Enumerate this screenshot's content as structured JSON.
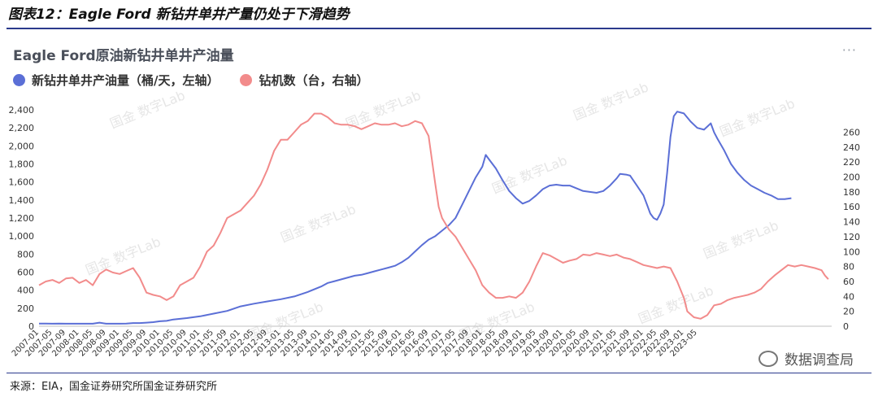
{
  "figure_title": "图表12：Eagle Ford 新钻井单井产量仍处于下滑趋势",
  "chart_title": "Eagle Ford原油新钻井单井产油量",
  "more_icon": "ellipsis-icon",
  "watermark": "国金 数字Lab",
  "source": "来源：EIA，国金证券研究所国金证券研究所",
  "wechat_label": "数据调查局",
  "chart_data": {
    "type": "line",
    "x_ticks": [
      "2007-01",
      "2007-05",
      "2007-09",
      "2008-01",
      "2008-05",
      "2008-09",
      "2009-01",
      "2009-05",
      "2009-09",
      "2010-01",
      "2010-05",
      "2010-09",
      "2011-01",
      "2011-05",
      "2011-09",
      "2012-01",
      "2012-05",
      "2012-09",
      "2013-01",
      "2013-05",
      "2013-09",
      "2014-01",
      "2014-05",
      "2014-09",
      "2015-01",
      "2015-05",
      "2015-09",
      "2016-01",
      "2016-05",
      "2016-09",
      "2017-01",
      "2017-05",
      "2017-09",
      "2018-01",
      "2018-05",
      "2018-09",
      "2019-01",
      "2019-05",
      "2019-09",
      "2020-01",
      "2020-05",
      "2020-09",
      "2021-01",
      "2021-05",
      "2021-09",
      "2022-01",
      "2022-05",
      "2022-09",
      "2023-01",
      "2023-05"
    ],
    "y_left": {
      "range": [
        0,
        2400
      ],
      "ticks": [
        "0",
        "200",
        "400",
        "600",
        "800",
        "1,000",
        "1,200",
        "1,400",
        "1,600",
        "1,800",
        "2,000",
        "2,200",
        "2,400"
      ]
    },
    "y_right": {
      "range": [
        0,
        290
      ],
      "ticks": [
        "0",
        "20",
        "40",
        "60",
        "80",
        "100",
        "120",
        "140",
        "160",
        "180",
        "200",
        "220",
        "240",
        "260"
      ]
    },
    "series": [
      {
        "name": "新钻井单井产油量（桶/天，左轴）",
        "axis": "left",
        "color": "#5b6fd6",
        "points": [
          [
            0,
            30
          ],
          [
            2,
            30
          ],
          [
            4,
            28
          ],
          [
            6,
            30
          ],
          [
            8,
            28
          ],
          [
            10,
            28
          ],
          [
            12,
            28
          ],
          [
            14,
            28
          ],
          [
            16,
            28
          ],
          [
            18,
            40
          ],
          [
            20,
            28
          ],
          [
            22,
            28
          ],
          [
            24,
            28
          ],
          [
            26,
            30
          ],
          [
            28,
            35
          ],
          [
            30,
            35
          ],
          [
            32,
            40
          ],
          [
            34,
            45
          ],
          [
            36,
            55
          ],
          [
            38,
            60
          ],
          [
            40,
            75
          ],
          [
            44,
            90
          ],
          [
            48,
            110
          ],
          [
            52,
            140
          ],
          [
            56,
            170
          ],
          [
            60,
            220
          ],
          [
            64,
            250
          ],
          [
            68,
            275
          ],
          [
            72,
            300
          ],
          [
            76,
            330
          ],
          [
            80,
            380
          ],
          [
            84,
            440
          ],
          [
            86,
            480
          ],
          [
            88,
            500
          ],
          [
            90,
            520
          ],
          [
            92,
            540
          ],
          [
            94,
            560
          ],
          [
            96,
            570
          ],
          [
            98,
            590
          ],
          [
            100,
            610
          ],
          [
            102,
            630
          ],
          [
            104,
            650
          ],
          [
            106,
            670
          ],
          [
            108,
            710
          ],
          [
            110,
            760
          ],
          [
            112,
            830
          ],
          [
            114,
            900
          ],
          [
            116,
            960
          ],
          [
            118,
            1000
          ],
          [
            120,
            1060
          ],
          [
            122,
            1120
          ],
          [
            124,
            1200
          ],
          [
            126,
            1350
          ],
          [
            128,
            1500
          ],
          [
            130,
            1650
          ],
          [
            132,
            1770
          ],
          [
            133,
            1900
          ],
          [
            134,
            1850
          ],
          [
            136,
            1750
          ],
          [
            138,
            1620
          ],
          [
            140,
            1500
          ],
          [
            142,
            1420
          ],
          [
            144,
            1360
          ],
          [
            146,
            1390
          ],
          [
            148,
            1450
          ],
          [
            150,
            1520
          ],
          [
            152,
            1560
          ],
          [
            154,
            1570
          ],
          [
            156,
            1560
          ],
          [
            158,
            1560
          ],
          [
            160,
            1530
          ],
          [
            162,
            1500
          ],
          [
            164,
            1490
          ],
          [
            166,
            1480
          ],
          [
            168,
            1500
          ],
          [
            170,
            1560
          ],
          [
            172,
            1640
          ],
          [
            173,
            1690
          ],
          [
            175,
            1680
          ],
          [
            176,
            1670
          ],
          [
            178,
            1560
          ],
          [
            180,
            1450
          ],
          [
            181,
            1350
          ],
          [
            182,
            1250
          ],
          [
            183,
            1200
          ],
          [
            184,
            1180
          ],
          [
            185,
            1250
          ],
          [
            186,
            1350
          ],
          [
            187,
            1700
          ],
          [
            188,
            2100
          ],
          [
            189,
            2330
          ],
          [
            190,
            2380
          ],
          [
            192,
            2360
          ],
          [
            194,
            2270
          ],
          [
            196,
            2200
          ],
          [
            198,
            2180
          ],
          [
            200,
            2250
          ],
          [
            201,
            2150
          ],
          [
            202,
            2080
          ],
          [
            204,
            1950
          ],
          [
            206,
            1800
          ],
          [
            208,
            1700
          ],
          [
            210,
            1620
          ],
          [
            212,
            1560
          ],
          [
            214,
            1520
          ],
          [
            216,
            1480
          ],
          [
            218,
            1450
          ],
          [
            220,
            1410
          ],
          [
            222,
            1410
          ],
          [
            224,
            1420
          ]
        ]
      },
      {
        "name": "钻机数（台，右轴）",
        "axis": "right",
        "color": "#f28b8b",
        "points": [
          [
            0,
            55
          ],
          [
            2,
            60
          ],
          [
            4,
            62
          ],
          [
            6,
            58
          ],
          [
            8,
            64
          ],
          [
            10,
            65
          ],
          [
            12,
            58
          ],
          [
            14,
            62
          ],
          [
            16,
            55
          ],
          [
            18,
            70
          ],
          [
            20,
            76
          ],
          [
            22,
            72
          ],
          [
            24,
            70
          ],
          [
            26,
            74
          ],
          [
            28,
            78
          ],
          [
            30,
            65
          ],
          [
            32,
            45
          ],
          [
            34,
            42
          ],
          [
            36,
            40
          ],
          [
            38,
            35
          ],
          [
            40,
            40
          ],
          [
            42,
            55
          ],
          [
            44,
            60
          ],
          [
            46,
            65
          ],
          [
            48,
            80
          ],
          [
            50,
            100
          ],
          [
            52,
            108
          ],
          [
            54,
            125
          ],
          [
            56,
            145
          ],
          [
            58,
            150
          ],
          [
            60,
            155
          ],
          [
            62,
            165
          ],
          [
            64,
            175
          ],
          [
            66,
            190
          ],
          [
            68,
            210
          ],
          [
            70,
            235
          ],
          [
            72,
            250
          ],
          [
            74,
            250
          ],
          [
            76,
            260
          ],
          [
            78,
            270
          ],
          [
            80,
            275
          ],
          [
            82,
            285
          ],
          [
            84,
            285
          ],
          [
            86,
            280
          ],
          [
            88,
            272
          ],
          [
            90,
            270
          ],
          [
            92,
            270
          ],
          [
            94,
            268
          ],
          [
            96,
            264
          ],
          [
            98,
            268
          ],
          [
            100,
            272
          ],
          [
            102,
            270
          ],
          [
            104,
            270
          ],
          [
            106,
            272
          ],
          [
            108,
            268
          ],
          [
            110,
            270
          ],
          [
            112,
            275
          ],
          [
            114,
            272
          ],
          [
            116,
            255
          ],
          [
            118,
            190
          ],
          [
            119,
            160
          ],
          [
            120,
            145
          ],
          [
            122,
            130
          ],
          [
            124,
            120
          ],
          [
            126,
            105
          ],
          [
            128,
            90
          ],
          [
            130,
            75
          ],
          [
            132,
            55
          ],
          [
            134,
            45
          ],
          [
            136,
            38
          ],
          [
            138,
            38
          ],
          [
            140,
            40
          ],
          [
            142,
            38
          ],
          [
            144,
            45
          ],
          [
            146,
            60
          ],
          [
            148,
            80
          ],
          [
            150,
            98
          ],
          [
            152,
            95
          ],
          [
            154,
            90
          ],
          [
            156,
            85
          ],
          [
            158,
            88
          ],
          [
            160,
            90
          ],
          [
            162,
            96
          ],
          [
            164,
            95
          ],
          [
            166,
            98
          ],
          [
            168,
            96
          ],
          [
            170,
            94
          ],
          [
            172,
            96
          ],
          [
            174,
            92
          ],
          [
            176,
            90
          ],
          [
            178,
            86
          ],
          [
            180,
            82
          ],
          [
            182,
            80
          ],
          [
            184,
            78
          ],
          [
            186,
            80
          ],
          [
            188,
            78
          ],
          [
            190,
            60
          ],
          [
            192,
            38
          ],
          [
            193,
            20
          ],
          [
            195,
            12
          ],
          [
            197,
            10
          ],
          [
            199,
            15
          ],
          [
            201,
            28
          ],
          [
            203,
            30
          ],
          [
            205,
            35
          ],
          [
            207,
            38
          ],
          [
            209,
            40
          ],
          [
            211,
            42
          ],
          [
            213,
            45
          ],
          [
            215,
            50
          ],
          [
            217,
            60
          ],
          [
            219,
            68
          ],
          [
            221,
            75
          ],
          [
            223,
            82
          ],
          [
            225,
            80
          ],
          [
            227,
            82
          ],
          [
            229,
            80
          ],
          [
            231,
            78
          ],
          [
            233,
            75
          ],
          [
            234,
            68
          ],
          [
            235,
            63
          ]
        ]
      }
    ]
  }
}
